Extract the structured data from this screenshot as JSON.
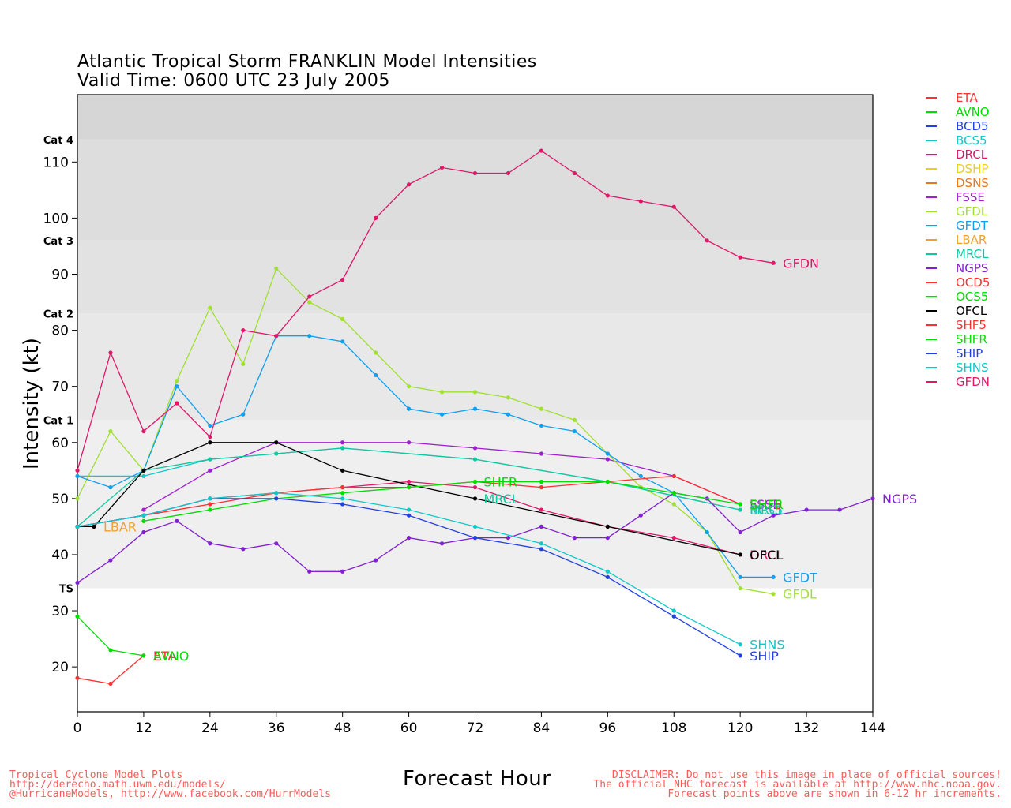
{
  "title": "Atlantic Tropical Storm FRANKLIN Model Intensities",
  "subtitle": "Valid Time: 0600 UTC 23 July 2005",
  "footer_left": [
    "Tropical Cyclone Model Plots",
    "http://derecho.math.uwm.edu/models/",
    "@HurricaneModels, http://www.facebook.com/HurrModels"
  ],
  "footer_right": [
    "DISCLAIMER: Do not use this image in place of official sources!",
    "The official NHC forecast is available at http://www.nhc.noaa.gov.",
    "Forecast points above are shown in 6-12 hr increments."
  ],
  "chart_data": {
    "type": "line",
    "title": "Atlantic Tropical Storm FRANKLIN Model Intensities",
    "xlabel": "Forecast Hour",
    "ylabel": "Intensity (kt)",
    "xlim": [
      0,
      144
    ],
    "ylim": [
      12,
      122
    ],
    "x_ticks": [
      0,
      12,
      24,
      36,
      48,
      60,
      72,
      84,
      96,
      108,
      120,
      132,
      144
    ],
    "y_ticks": [
      20,
      30,
      40,
      50,
      60,
      70,
      80,
      90,
      100,
      110
    ],
    "category_bands": [
      {
        "label": "TS",
        "lower": 34,
        "upper": 64,
        "color": "#efefef"
      },
      {
        "label": "Cat 1",
        "lower": 64,
        "upper": 83,
        "color": "#e8e8e8"
      },
      {
        "label": "Cat 2",
        "lower": 83,
        "upper": 96,
        "color": "#e2e2e2"
      },
      {
        "label": "Cat 3",
        "lower": 96,
        "upper": 114,
        "color": "#dddddd"
      },
      {
        "label": "Cat 4",
        "lower": 114,
        "upper": 122,
        "color": "#d6d6d6"
      }
    ],
    "legend_position": "right",
    "series": [
      {
        "name": "ETA",
        "color": "#ff3030",
        "points": [
          [
            0,
            18
          ],
          [
            6,
            17
          ],
          [
            12,
            22
          ]
        ],
        "end_label": "ETA"
      },
      {
        "name": "AVNO",
        "color": "#00dd00",
        "points": [
          [
            0,
            29
          ],
          [
            6,
            23
          ],
          [
            12,
            22
          ]
        ],
        "end_label": "AVNO"
      },
      {
        "name": "BCD5",
        "color": "#2040e0",
        "points": [],
        "end_label": ""
      },
      {
        "name": "BCS5",
        "color": "#10c8c8",
        "points": [
          [
            0,
            54
          ],
          [
            12,
            54
          ],
          [
            24,
            57
          ],
          [
            36,
            58
          ],
          [
            48,
            59
          ],
          [
            72,
            57
          ],
          [
            96,
            53
          ],
          [
            120,
            48
          ]
        ],
        "end_label": "BCS5"
      },
      {
        "name": "DRCL",
        "color": "#e0186a",
        "points": [
          [
            0,
            45
          ],
          [
            12,
            47
          ],
          [
            24,
            50
          ],
          [
            36,
            51
          ],
          [
            48,
            52
          ],
          [
            60,
            53
          ],
          [
            72,
            52
          ],
          [
            84,
            48
          ],
          [
            96,
            45
          ],
          [
            108,
            43
          ],
          [
            120,
            40
          ]
        ],
        "end_label": "DRCL"
      },
      {
        "name": "DSHP",
        "color": "#e8d020",
        "points": [],
        "end_label": "DSHP"
      },
      {
        "name": "DSNS",
        "color": "#e87820",
        "points": [],
        "end_label": "DSNS"
      },
      {
        "name": "FSSE",
        "color": "#a020d0",
        "points": [
          [
            12,
            48
          ],
          [
            24,
            55
          ],
          [
            36,
            60
          ],
          [
            48,
            60
          ],
          [
            60,
            60
          ],
          [
            72,
            59
          ],
          [
            84,
            58
          ],
          [
            96,
            57
          ],
          [
            108,
            54
          ],
          [
            120,
            49
          ]
        ],
        "end_label": "FSSE"
      },
      {
        "name": "GFDL",
        "color": "#a0e030",
        "points": [
          [
            0,
            50
          ],
          [
            6,
            62
          ],
          [
            12,
            55
          ],
          [
            18,
            71
          ],
          [
            24,
            84
          ],
          [
            30,
            74
          ],
          [
            36,
            91
          ],
          [
            42,
            85
          ],
          [
            48,
            82
          ],
          [
            54,
            76
          ],
          [
            60,
            70
          ],
          [
            66,
            69
          ],
          [
            72,
            69
          ],
          [
            78,
            68
          ],
          [
            84,
            66
          ],
          [
            90,
            64
          ],
          [
            96,
            58
          ],
          [
            102,
            52
          ],
          [
            108,
            49
          ],
          [
            114,
            44
          ],
          [
            120,
            34
          ],
          [
            126,
            33
          ]
        ],
        "end_label": "GFDL"
      },
      {
        "name": "GFDT",
        "color": "#10a0f0",
        "points": [
          [
            0,
            54
          ],
          [
            6,
            52
          ],
          [
            12,
            55
          ],
          [
            18,
            70
          ],
          [
            24,
            63
          ],
          [
            30,
            65
          ],
          [
            36,
            79
          ],
          [
            42,
            79
          ],
          [
            48,
            78
          ],
          [
            54,
            72
          ],
          [
            60,
            66
          ],
          [
            66,
            65
          ],
          [
            72,
            66
          ],
          [
            78,
            65
          ],
          [
            84,
            63
          ],
          [
            90,
            62
          ],
          [
            96,
            58
          ],
          [
            102,
            54
          ],
          [
            108,
            51
          ],
          [
            114,
            44
          ],
          [
            120,
            36
          ],
          [
            126,
            36
          ]
        ],
        "end_label": "GFDT"
      },
      {
        "name": "LBAR",
        "color": "#f0a030",
        "points": [
          [
            0,
            45
          ],
          [
            3,
            45
          ]
        ],
        "end_label": "LBAR"
      },
      {
        "name": "MRCL",
        "color": "#10c8a0",
        "points": [
          [
            0,
            45
          ],
          [
            12,
            55
          ],
          [
            24,
            57
          ],
          [
            36,
            58
          ],
          [
            48,
            59
          ],
          [
            72,
            57
          ],
          [
            96,
            53
          ],
          [
            120,
            48
          ]
        ],
        "end_label": "MRCL"
      },
      {
        "name": "NGPS",
        "color": "#8020d0",
        "points": [
          [
            0,
            35
          ],
          [
            6,
            39
          ],
          [
            12,
            44
          ],
          [
            18,
            46
          ],
          [
            24,
            42
          ],
          [
            30,
            41
          ],
          [
            36,
            42
          ],
          [
            42,
            37
          ],
          [
            48,
            37
          ],
          [
            54,
            39
          ],
          [
            60,
            43
          ],
          [
            66,
            42
          ],
          [
            72,
            43
          ],
          [
            78,
            43
          ],
          [
            84,
            45
          ],
          [
            90,
            43
          ],
          [
            96,
            43
          ],
          [
            102,
            47
          ],
          [
            108,
            51
          ],
          [
            114,
            50
          ],
          [
            120,
            44
          ],
          [
            126,
            47
          ],
          [
            132,
            48
          ],
          [
            138,
            48
          ],
          [
            144,
            50
          ]
        ],
        "end_label": "NGPS"
      },
      {
        "name": "OCD5",
        "color": "#ff3030",
        "points": [],
        "end_label": "OCD5"
      },
      {
        "name": "OCS5",
        "color": "#00dd00",
        "points": [],
        "end_label": "OCS5"
      },
      {
        "name": "OFCL",
        "color": "#000000",
        "points": [
          [
            0,
            45
          ],
          [
            3,
            45
          ],
          [
            12,
            55
          ],
          [
            24,
            60
          ],
          [
            36,
            60
          ],
          [
            48,
            55
          ],
          [
            72,
            50
          ],
          [
            96,
            45
          ],
          [
            120,
            40
          ]
        ],
        "end_label": "OFCL"
      },
      {
        "name": "SHF5",
        "color": "#ff3030",
        "points": [
          [
            0,
            45
          ],
          [
            12,
            47
          ],
          [
            24,
            49
          ],
          [
            36,
            51
          ],
          [
            48,
            52
          ],
          [
            60,
            52
          ],
          [
            72,
            53
          ],
          [
            84,
            52
          ],
          [
            96,
            53
          ],
          [
            108,
            54
          ],
          [
            120,
            49
          ]
        ],
        "end_label": "SHF5"
      },
      {
        "name": "SHFR",
        "color": "#00dd00",
        "points": [
          [
            12,
            46
          ],
          [
            24,
            48
          ],
          [
            36,
            50
          ],
          [
            48,
            51
          ],
          [
            60,
            52
          ],
          [
            72,
            53
          ],
          [
            84,
            53
          ],
          [
            96,
            53
          ],
          [
            108,
            51
          ],
          [
            120,
            49
          ]
        ],
        "end_label": "SHFR"
      },
      {
        "name": "SHIP",
        "color": "#2040e0",
        "points": [
          [
            0,
            45
          ],
          [
            12,
            47
          ],
          [
            24,
            50
          ],
          [
            36,
            50
          ],
          [
            48,
            49
          ],
          [
            60,
            47
          ],
          [
            72,
            43
          ],
          [
            84,
            41
          ],
          [
            96,
            36
          ],
          [
            108,
            29
          ],
          [
            120,
            22
          ]
        ],
        "end_label": "SHIP"
      },
      {
        "name": "SHNS",
        "color": "#10c8c8",
        "points": [
          [
            0,
            45
          ],
          [
            12,
            47
          ],
          [
            24,
            50
          ],
          [
            36,
            51
          ],
          [
            48,
            50
          ],
          [
            60,
            48
          ],
          [
            72,
            45
          ],
          [
            84,
            42
          ],
          [
            96,
            37
          ],
          [
            108,
            30
          ],
          [
            120,
            24
          ]
        ],
        "end_label": "SHNS"
      },
      {
        "name": "GFDN",
        "color": "#e0186a",
        "points": [
          [
            0,
            55
          ],
          [
            6,
            76
          ],
          [
            12,
            62
          ],
          [
            18,
            67
          ],
          [
            24,
            61
          ],
          [
            30,
            80
          ],
          [
            36,
            79
          ],
          [
            42,
            86
          ],
          [
            48,
            89
          ],
          [
            54,
            100
          ],
          [
            60,
            106
          ],
          [
            66,
            109
          ],
          [
            72,
            108
          ],
          [
            78,
            108
          ],
          [
            84,
            112
          ],
          [
            90,
            108
          ],
          [
            96,
            104
          ],
          [
            102,
            103
          ],
          [
            108,
            102
          ],
          [
            114,
            96
          ],
          [
            120,
            93
          ],
          [
            126,
            92
          ]
        ],
        "end_label": "GFDN"
      }
    ],
    "inline_labels": [
      {
        "text": "SHFR",
        "color": "#00dd00",
        "x": 73,
        "y": 53
      },
      {
        "text": "MRCL",
        "color": "#10c8a0",
        "x": 73,
        "y": 50
      }
    ]
  }
}
